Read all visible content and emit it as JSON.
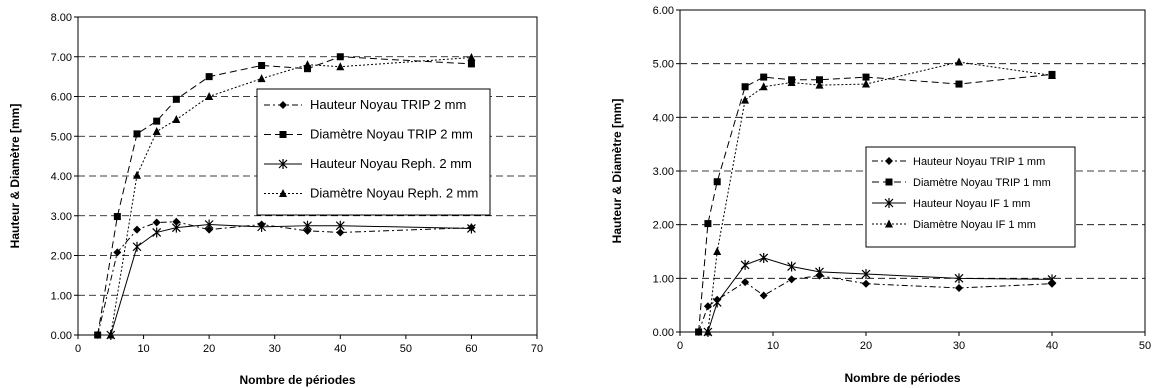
{
  "chart_data": [
    {
      "type": "line",
      "title": "",
      "xlabel": "Nombre de périodes",
      "ylabel": "Hauteur & Diamètre [mm]",
      "xlim": [
        0,
        70
      ],
      "ylim": [
        0,
        8
      ],
      "xticks": [
        "0",
        "10",
        "20",
        "30",
        "40",
        "50",
        "60",
        "70"
      ],
      "yticks": [
        "0.00",
        "1.00",
        "2.00",
        "3.00",
        "4.00",
        "5.00",
        "6.00",
        "7.00",
        "8.00"
      ],
      "grid": "horizontal dashed",
      "legend_position": "right",
      "series": [
        {
          "name": "Hauteur Noyau TRIP 2 mm",
          "marker": "diamond",
          "dash": "6,3,2,3",
          "x": [
            3,
            6,
            9,
            12,
            15,
            20,
            28,
            35,
            40,
            60
          ],
          "y": [
            0.0,
            2.08,
            2.65,
            2.83,
            2.85,
            2.65,
            2.78,
            2.62,
            2.58,
            2.7
          ]
        },
        {
          "name": "Diamètre Noyau TRIP 2 mm",
          "marker": "square",
          "dash": "7,4",
          "x": [
            3,
            6,
            9,
            12,
            15,
            20,
            28,
            35,
            40,
            60
          ],
          "y": [
            0.0,
            2.98,
            5.06,
            5.38,
            5.93,
            6.5,
            6.78,
            6.7,
            7.0,
            6.82
          ]
        },
        {
          "name": "Hauteur Noyau Reph. 2 mm",
          "marker": "star",
          "dash": "",
          "x": [
            5,
            9,
            12,
            15,
            20,
            28,
            35,
            40,
            60
          ],
          "y": [
            0.0,
            2.22,
            2.58,
            2.7,
            2.78,
            2.72,
            2.75,
            2.75,
            2.68
          ]
        },
        {
          "name": "Diamètre Noyau Reph. 2 mm",
          "marker": "triangle",
          "dash": "2,2",
          "x": [
            5,
            9,
            12,
            15,
            20,
            28,
            35,
            40,
            60
          ],
          "y": [
            0.0,
            4.02,
            5.12,
            5.42,
            6.0,
            6.45,
            6.8,
            6.75,
            6.98
          ]
        }
      ]
    },
    {
      "type": "line",
      "title": "",
      "xlabel": "Nombre de périodes",
      "ylabel": "Hauteur & Diamètre [mm]",
      "xlim": [
        0,
        50
      ],
      "ylim": [
        0,
        6
      ],
      "xticks": [
        "0",
        "10",
        "20",
        "30",
        "40",
        "50"
      ],
      "yticks": [
        "0.00",
        "1.00",
        "2.00",
        "3.00",
        "4.00",
        "5.00",
        "6.00"
      ],
      "grid": "horizontal dashed",
      "legend_position": "right",
      "series": [
        {
          "name": "Hauteur Noyau TRIP 1 mm",
          "marker": "diamond",
          "dash": "6,3,2,3",
          "x": [
            2,
            3,
            4,
            7,
            9,
            12,
            15,
            20,
            30,
            40
          ],
          "y": [
            0.0,
            0.48,
            0.6,
            0.93,
            0.68,
            0.98,
            1.05,
            0.9,
            0.82,
            0.9
          ]
        },
        {
          "name": "Diamètre Noyau TRIP 1 mm",
          "marker": "square",
          "dash": "7,4",
          "x": [
            2,
            3,
            4,
            7,
            9,
            12,
            15,
            20,
            30,
            40
          ],
          "y": [
            0.0,
            2.02,
            2.8,
            4.57,
            4.75,
            4.7,
            4.7,
            4.75,
            4.62,
            4.8
          ]
        },
        {
          "name": "Hauteur Noyau IF 1 mm",
          "marker": "star",
          "dash": "",
          "x": [
            3,
            4,
            7,
            9,
            12,
            15,
            20,
            30,
            40
          ],
          "y": [
            0.0,
            0.55,
            1.25,
            1.38,
            1.22,
            1.12,
            1.08,
            1.0,
            0.98
          ]
        },
        {
          "name": "Diamètre Noyau IF 1 mm",
          "marker": "triangle",
          "dash": "2,2",
          "x": [
            3,
            4,
            7,
            9,
            12,
            15,
            20,
            30,
            40
          ],
          "y": [
            0.0,
            1.5,
            4.32,
            4.57,
            4.65,
            4.6,
            4.62,
            5.03,
            4.78
          ]
        }
      ]
    }
  ]
}
